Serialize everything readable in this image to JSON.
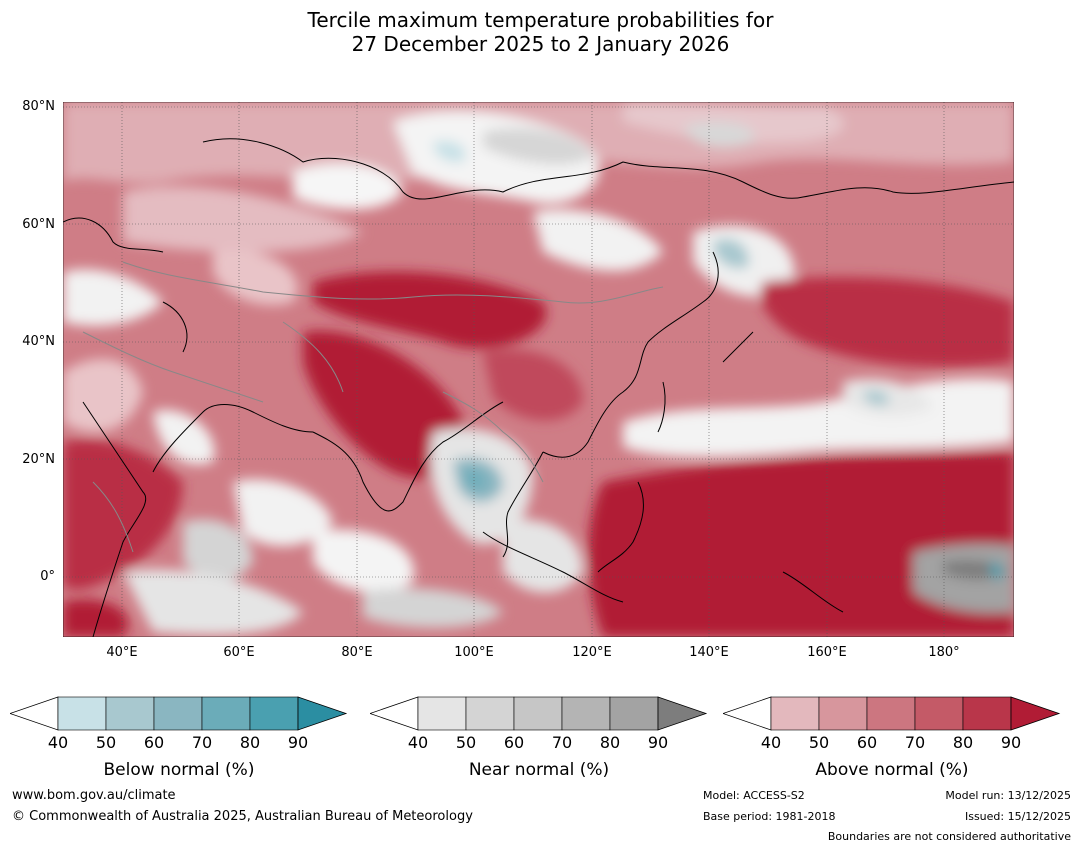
{
  "title": {
    "line1": "Tercile maximum temperature probabilities for",
    "line2": "27 December 2025 to 2 January 2026"
  },
  "map": {
    "lat_labels": [
      "80°N",
      "60°N",
      "40°N",
      "20°N",
      "0°"
    ],
    "lon_labels": [
      "40°E",
      "60°E",
      "80°E",
      "100°E",
      "120°E",
      "140°E",
      "160°E",
      "180°"
    ]
  },
  "legends": [
    {
      "title": "Below normal (%)",
      "ticks": [
        "40",
        "50",
        "60",
        "70",
        "80",
        "90"
      ],
      "colors": [
        "#c8e1e7",
        "#a8c8cf",
        "#8ab6c1",
        "#6bacb9",
        "#4aa0b0",
        "#2b8ea2"
      ]
    },
    {
      "title": "Near normal (%)",
      "ticks": [
        "40",
        "50",
        "60",
        "70",
        "80",
        "90"
      ],
      "colors": [
        "#e5e5e5",
        "#d4d4d4",
        "#c6c6c6",
        "#b4b4b4",
        "#a3a3a3",
        "#7d7d7d"
      ]
    },
    {
      "title": "Above normal (%)",
      "ticks": [
        "40",
        "50",
        "60",
        "70",
        "80",
        "90"
      ],
      "colors": [
        "#e3b8bd",
        "#d7969d",
        "#cc7680",
        "#c45a67",
        "#b9364a",
        "#b11c35"
      ]
    }
  ],
  "footer": {
    "website": "www.bom.gov.au/climate",
    "copyright": "© Commonwealth of Australia 2025, Australian Bureau of Meteorology",
    "model": "Model: ACCESS-S2",
    "base_period": "Base period: 1981-2018",
    "model_run": "Model run: 13/12/2025",
    "issued": "Issued: 15/12/2025",
    "disclaimer": "Boundaries are not considered authoritative"
  }
}
